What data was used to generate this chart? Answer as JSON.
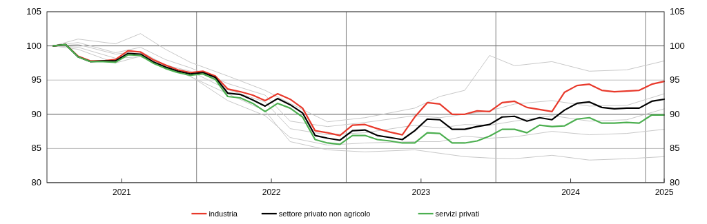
{
  "chart_data": {
    "type": "line",
    "x": [
      2021.042,
      2021.125,
      2021.208,
      2021.292,
      2021.375,
      2021.458,
      2021.542,
      2021.625,
      2021.708,
      2021.792,
      2021.875,
      2021.958,
      2022.042,
      2022.125,
      2022.208,
      2022.292,
      2022.375,
      2022.458,
      2022.542,
      2022.625,
      2022.708,
      2022.792,
      2022.875,
      2022.958,
      2023.042,
      2023.125,
      2023.208,
      2023.292,
      2023.375,
      2023.458,
      2023.542,
      2023.625,
      2023.708,
      2023.792,
      2023.875,
      2023.958,
      2024.042,
      2024.125,
      2024.208,
      2024.292,
      2024.375,
      2024.458,
      2024.542,
      2024.625,
      2024.708,
      2024.792,
      2024.875,
      2024.958,
      2025.042,
      2025.125
    ],
    "series": [
      {
        "color": "#c8c8c8",
        "x": [
          2021.042,
          2021.208,
          2021.458,
          2021.625,
          2021.792,
          2021.958,
          2022.208,
          2022.458,
          2022.625,
          2022.875,
          2023.125,
          2023.458,
          2023.625,
          2023.792,
          2023.958,
          2024.125,
          2024.375,
          2024.625,
          2024.875,
          2025.125
        ],
        "values": [
          100,
          101,
          100.3,
          101.8,
          99.5,
          97.6,
          95.6,
          93.5,
          91.6,
          88.9,
          89.5,
          90.9,
          92.6,
          93.5,
          98.6,
          97.1,
          97.7,
          96.3,
          96.5,
          97.8
        ]
      },
      {
        "color": "#c8c8c8",
        "x": [
          2021.042,
          2021.208,
          2021.458,
          2021.625,
          2021.792,
          2021.958,
          2022.208,
          2022.458,
          2022.625,
          2022.875,
          2023.125,
          2023.458,
          2023.625,
          2023.792,
          2023.958,
          2024.125,
          2024.375,
          2024.625,
          2024.875,
          2025.125
        ],
        "values": [
          100,
          99.8,
          98.2,
          98.4,
          97,
          95.5,
          93,
          90.5,
          86,
          84.8,
          84.5,
          84.8,
          84.3,
          83.8,
          83.6,
          83.5,
          84,
          83.3,
          83.5,
          83.8
        ]
      },
      {
        "color": "#c8c8c8",
        "x": [
          2021.042,
          2021.208,
          2021.458,
          2021.625,
          2021.792,
          2021.958,
          2022.208,
          2022.458,
          2022.625,
          2022.875,
          2023.125,
          2023.458,
          2023.625,
          2023.792,
          2023.958,
          2024.125,
          2024.375,
          2024.625,
          2024.875,
          2025.125
        ],
        "values": [
          100,
          99.5,
          97.5,
          98.5,
          96.8,
          95.6,
          92,
          89.8,
          86.6,
          85.5,
          85.8,
          86,
          86,
          86.8,
          86.5,
          86.7,
          87.5,
          87,
          87.2,
          87.8
        ]
      },
      {
        "color": "#c8c8c8",
        "x": [
          2021.042,
          2021.208,
          2021.458,
          2021.625,
          2021.792,
          2021.958,
          2022.208,
          2022.458,
          2022.625,
          2022.875,
          2023.125,
          2023.458,
          2023.625,
          2023.792,
          2023.958,
          2024.125,
          2024.375,
          2024.625,
          2024.875,
          2025.125
        ],
        "values": [
          100,
          100.5,
          99,
          99.8,
          98,
          96.8,
          94.5,
          92.8,
          89,
          88.2,
          88.8,
          89.8,
          89.5,
          90,
          90.5,
          91.5,
          92,
          91.2,
          91.3,
          93
        ]
      },
      {
        "color": "#c8c8c8",
        "x": [
          2021.042,
          2021.208,
          2021.458,
          2021.625,
          2021.792,
          2021.958,
          2022.208,
          2022.458,
          2022.625,
          2022.875,
          2023.125,
          2023.458,
          2023.625,
          2023.792,
          2023.958,
          2024.125,
          2024.375,
          2024.625,
          2024.875,
          2025.125
        ],
        "values": [
          100,
          100.2,
          98.8,
          99.2,
          97.2,
          96.3,
          93.6,
          91.8,
          87.9,
          87,
          87.3,
          88.4,
          88,
          88.5,
          88.4,
          89,
          89.8,
          89,
          89.2,
          90.8
        ]
      },
      {
        "name": "industria",
        "color": "#e8392b",
        "values": [
          100,
          100.2,
          98.5,
          97.8,
          97.8,
          98,
          99.3,
          99.1,
          98,
          97.2,
          96.5,
          96.1,
          96.3,
          95.6,
          93.7,
          93.3,
          92.8,
          92,
          93,
          92.2,
          90.9,
          87.6,
          87.3,
          86.9,
          88.4,
          88.5,
          87.9,
          87.4,
          87,
          89.6,
          91.7,
          91.5,
          90,
          90,
          90.5,
          90.4,
          91.7,
          91.9,
          91,
          90.7,
          90.4,
          93.2,
          94.2,
          94.4,
          93.5,
          93.3,
          93.4,
          93.5,
          94.4,
          94.8
        ]
      },
      {
        "name": "settore privato non agricolo",
        "color": "#000000",
        "values": [
          100,
          100.2,
          98.4,
          97.7,
          97.8,
          97.8,
          98.9,
          98.8,
          97.7,
          96.9,
          96.3,
          95.9,
          96.1,
          95.4,
          93.1,
          92.9,
          92.1,
          91.2,
          92.3,
          91.4,
          90.2,
          86.9,
          86.5,
          86.2,
          87.6,
          87.7,
          86.9,
          86.6,
          86.3,
          87.6,
          89.3,
          89.2,
          87.8,
          87.8,
          88.2,
          88.5,
          89.6,
          89.7,
          89,
          89.5,
          89.2,
          90.6,
          91.6,
          91.8,
          91,
          90.8,
          90.9,
          90.9,
          91.9,
          92.2
        ]
      },
      {
        "name": "servizi privati",
        "color": "#4caf50",
        "values": [
          100,
          100.2,
          98.4,
          97.7,
          97.7,
          97.6,
          98.7,
          98.6,
          97.5,
          96.7,
          96.1,
          95.7,
          95.9,
          95.1,
          92.6,
          92.4,
          91.6,
          90.4,
          91.6,
          90.9,
          89.6,
          86.3,
          85.8,
          85.6,
          86.9,
          86.9,
          86.3,
          86.1,
          85.8,
          85.8,
          87.3,
          87.2,
          85.8,
          85.8,
          86.1,
          86.8,
          87.8,
          87.8,
          87.3,
          88.4,
          88.2,
          88.3,
          89.3,
          89.5,
          88.7,
          88.7,
          88.8,
          88.7,
          89.9,
          89.9
        ]
      }
    ],
    "xlim": [
      2021,
      2025.125
    ],
    "xticks": [
      {
        "value": 2021.5,
        "label": "2021"
      },
      {
        "value": 2022.5,
        "label": "2022"
      },
      {
        "value": 2023.5,
        "label": "2023"
      },
      {
        "value": 2024.5,
        "label": "2024"
      },
      {
        "value": 2025.125,
        "label": "2025"
      }
    ],
    "ylim": [
      80,
      105
    ],
    "yticks": [
      80,
      85,
      90,
      95,
      100,
      105
    ],
    "y2lim": [
      80,
      105
    ],
    "y2ticks": [
      80,
      85,
      90,
      95,
      100,
      105
    ],
    "grid": "y",
    "ref_lines": [
      {
        "axis": "x",
        "value": 2022,
        "color": "#808080"
      },
      {
        "axis": "x",
        "value": 2023,
        "color": "#808080"
      },
      {
        "axis": "x",
        "value": 2024,
        "color": "#808080"
      },
      {
        "axis": "x",
        "value": 2025,
        "color": "#808080"
      }
    ],
    "legend": "bottom",
    "marker": "none",
    "line_style": "solid"
  }
}
